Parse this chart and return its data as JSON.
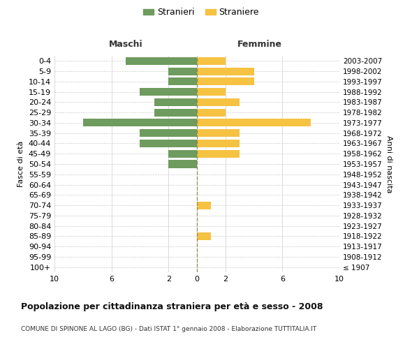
{
  "age_groups": [
    "100+",
    "95-99",
    "90-94",
    "85-89",
    "80-84",
    "75-79",
    "70-74",
    "65-69",
    "60-64",
    "55-59",
    "50-54",
    "45-49",
    "40-44",
    "35-39",
    "30-34",
    "25-29",
    "20-24",
    "15-19",
    "10-14",
    "5-9",
    "0-4"
  ],
  "birth_years": [
    "≤ 1907",
    "1908-1912",
    "1913-1917",
    "1918-1922",
    "1923-1927",
    "1928-1932",
    "1933-1937",
    "1938-1942",
    "1943-1947",
    "1948-1952",
    "1953-1957",
    "1958-1962",
    "1963-1967",
    "1968-1972",
    "1973-1977",
    "1978-1982",
    "1983-1987",
    "1988-1992",
    "1993-1997",
    "1998-2002",
    "2003-2007"
  ],
  "maschi": [
    0,
    0,
    0,
    0,
    0,
    0,
    0,
    0,
    0,
    0,
    2,
    2,
    4,
    4,
    8,
    3,
    3,
    4,
    2,
    2,
    5
  ],
  "femmine": [
    0,
    0,
    0,
    1,
    0,
    0,
    1,
    0,
    0,
    0,
    0,
    3,
    3,
    3,
    8,
    2,
    3,
    2,
    4,
    4,
    2
  ],
  "maschi_color": "#6e9b5e",
  "femmine_color": "#f5c242",
  "title": "Popolazione per cittadinanza straniera per età e sesso - 2008",
  "subtitle": "COMUNE DI SPINONE AL LAGO (BG) - Dati ISTAT 1° gennaio 2008 - Elaborazione TUTTITALIA.IT",
  "ylabel_left": "Fasce di età",
  "ylabel_right": "Anni di nascita",
  "xlabel_left": "Maschi",
  "xlabel_right": "Femmine",
  "legend_stranieri": "Stranieri",
  "legend_straniere": "Straniere",
  "xlim": 10,
  "background_color": "#ffffff",
  "grid_color": "#cccccc",
  "xticks": [
    -10,
    -6,
    -2,
    0,
    2,
    6,
    10
  ]
}
